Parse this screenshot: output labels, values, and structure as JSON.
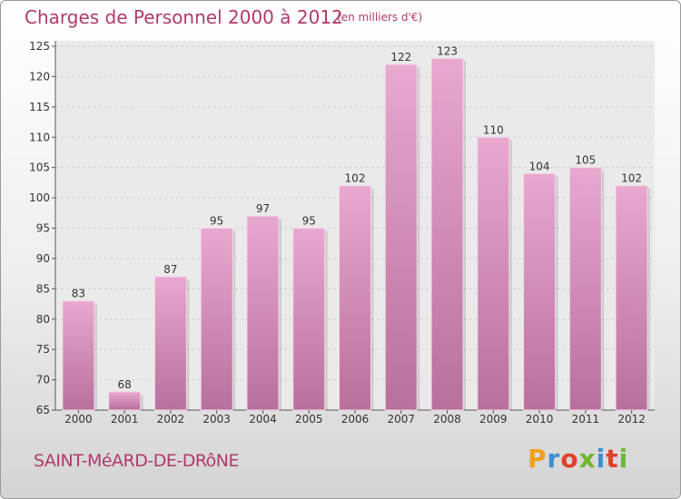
{
  "header": {
    "title": "Charges de Personnel 2000 à 2012",
    "unit_note": "(en milliers d'€)"
  },
  "footer": {
    "commune": "SAINT-MéARD-DE-DRôNE",
    "logo_text": "Proxiti",
    "logo_colors": [
      "#f0a020",
      "#3c8fd0",
      "#e0402a",
      "#6cb82c",
      "#3c8fd0",
      "#e0402a",
      "#6cb82c"
    ]
  },
  "colors": {
    "bar": "#d98bb7",
    "accent": "#b03a6e"
  },
  "chart_data": {
    "type": "bar",
    "title": "Charges de Personnel 2000 à 2012",
    "xlabel": "",
    "ylabel": "",
    "categories": [
      "2000",
      "2001",
      "2002",
      "2003",
      "2004",
      "2005",
      "2006",
      "2007",
      "2008",
      "2009",
      "2010",
      "2011",
      "2012"
    ],
    "values": [
      83,
      68,
      87,
      95,
      97,
      95,
      102,
      122,
      123,
      110,
      104,
      105,
      102
    ],
    "ylim": [
      65,
      125
    ],
    "yticks": [
      65,
      70,
      75,
      80,
      85,
      90,
      95,
      100,
      105,
      110,
      115,
      120,
      125
    ],
    "grid": true,
    "legend": "none"
  }
}
